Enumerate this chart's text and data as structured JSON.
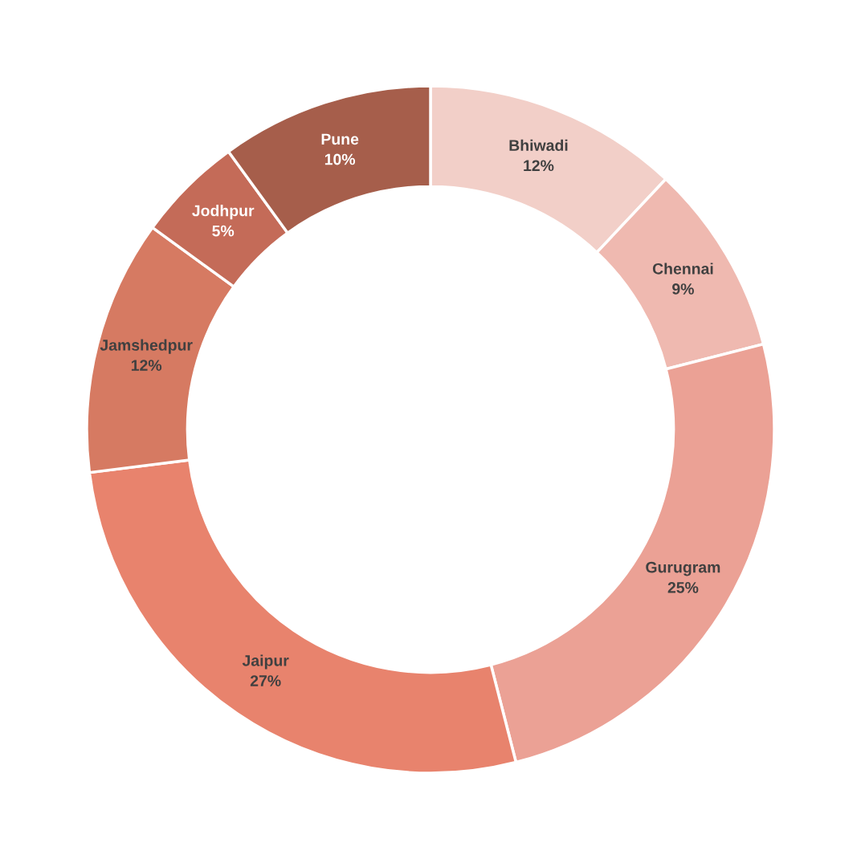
{
  "chart_data": {
    "type": "donut",
    "categories": [
      "Bhiwadi",
      "Chennai",
      "Gurugram",
      "Jaipur",
      "Jamshedpur",
      "Jodhpur",
      "Pune"
    ],
    "values": [
      12,
      9,
      25,
      27,
      12,
      5,
      10
    ],
    "value_labels": [
      "12%",
      "9%",
      "25%",
      "27%",
      "12%",
      "5%",
      "10%"
    ],
    "colors": [
      "#f2cfc8",
      "#efb9b0",
      "#eba195",
      "#e8836d",
      "#d67a62",
      "#c46b58",
      "#a65e4b"
    ],
    "legend": false
  }
}
